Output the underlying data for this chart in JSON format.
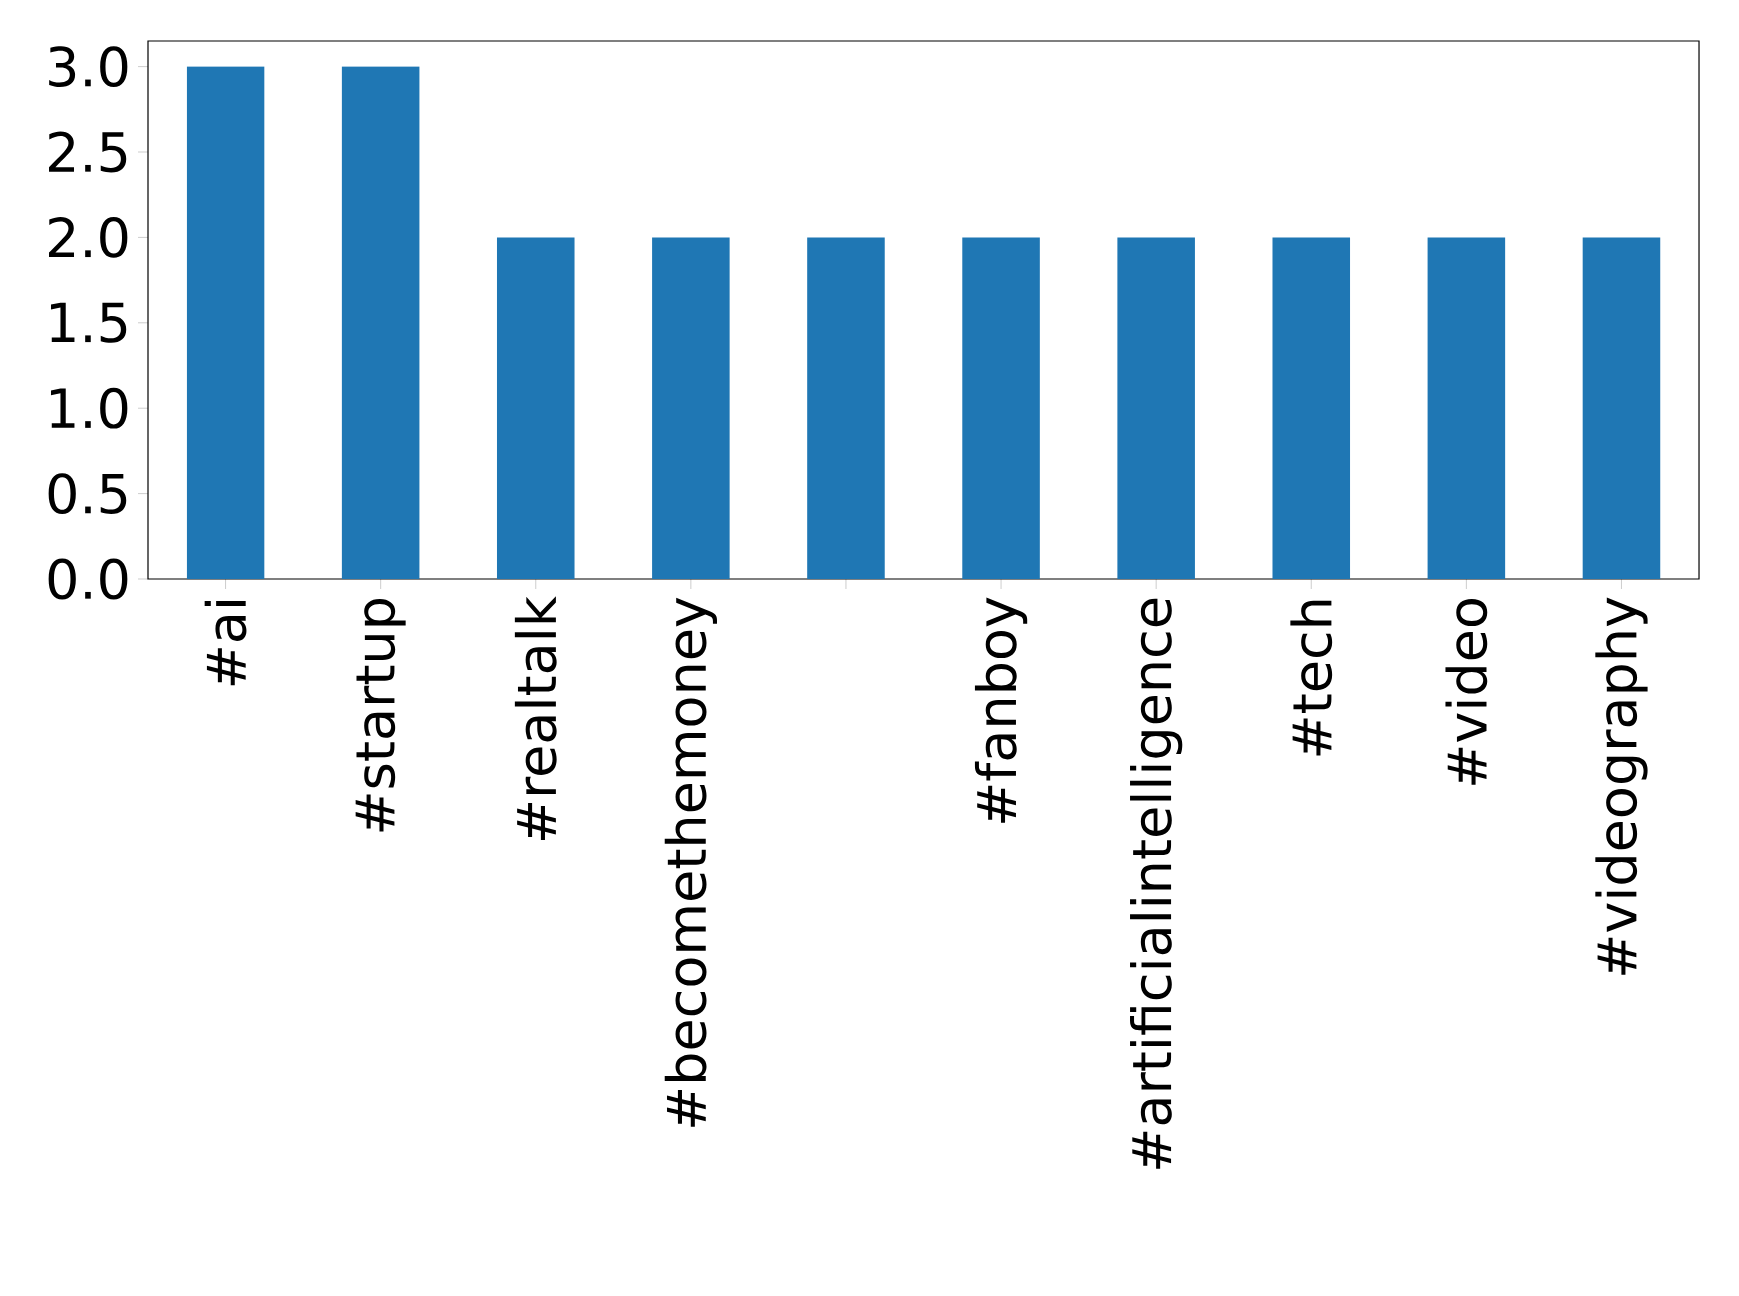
{
  "chart_data": {
    "type": "bar",
    "categories": [
      "#ai",
      "#startup",
      "#realtalk",
      "#becomethemoney",
      null,
      "#fanboy",
      "#artificialintelligence",
      "#tech",
      "#video",
      "#videography"
    ],
    "values": [
      3,
      3,
      2,
      2,
      2,
      2,
      2,
      2,
      2,
      2
    ],
    "color": "#1f77b4",
    "ylim": [
      0,
      3.15
    ],
    "yticks": [
      {
        "value": 0,
        "label": "0.0"
      },
      {
        "value": 0.5,
        "label": "0.5"
      },
      {
        "value": 1,
        "label": "1.0"
      },
      {
        "value": 1.5,
        "label": "1.5"
      },
      {
        "value": 2,
        "label": "2.0"
      },
      {
        "value": 2.5,
        "label": "2.5"
      },
      {
        "value": 3,
        "label": "3.0"
      }
    ]
  }
}
